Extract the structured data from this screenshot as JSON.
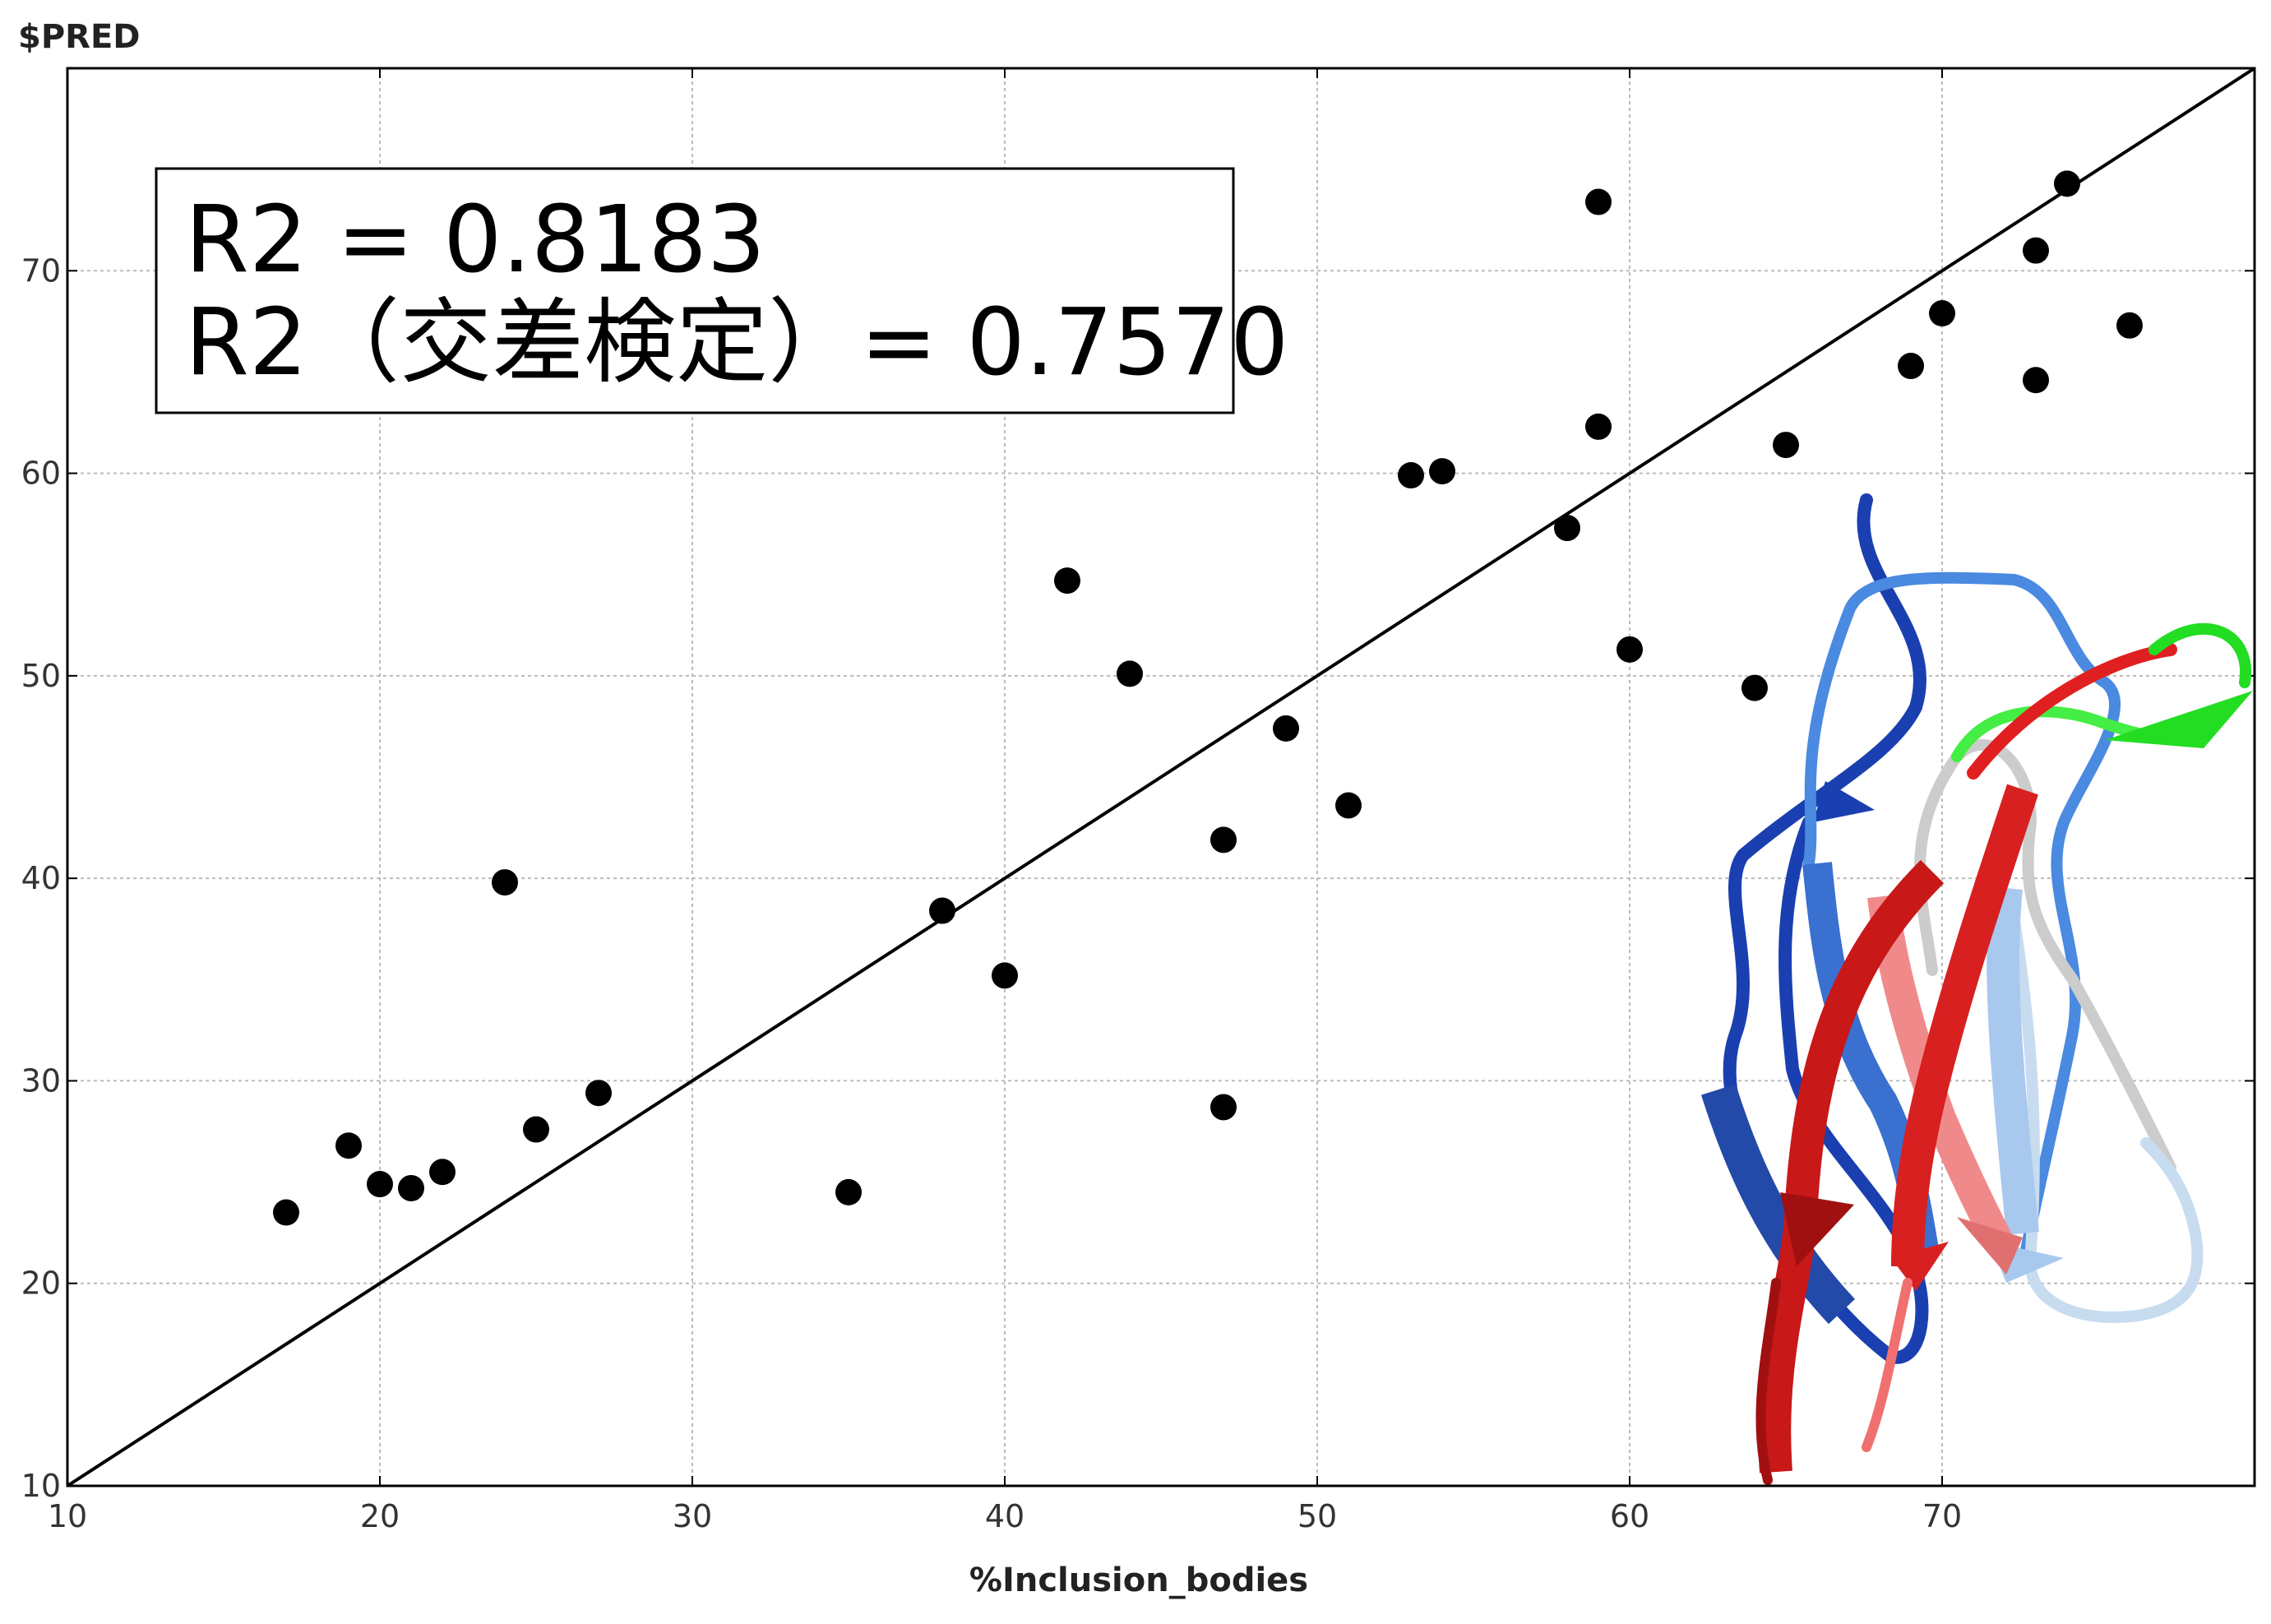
{
  "chart_data": {
    "type": "scatter",
    "ylabel": "$PRED",
    "xlabel": "%Inclusion_bodies",
    "xlim": [
      10,
      80
    ],
    "ylim": [
      10,
      80
    ],
    "x_ticks": [
      "10",
      "20",
      "30",
      "40",
      "50",
      "60",
      "70"
    ],
    "y_ticks": [
      "10",
      "20",
      "30",
      "40",
      "50",
      "60",
      "70"
    ],
    "grid": true,
    "reference_line": {
      "from": [
        10,
        10
      ],
      "to": [
        80,
        80
      ]
    },
    "annotation": [
      "R2 = 0.8183",
      "R2（交差検定）= 0.7570"
    ],
    "points": [
      {
        "x": 17,
        "y": 23.5
      },
      {
        "x": 19,
        "y": 26.8
      },
      {
        "x": 20,
        "y": 24.9
      },
      {
        "x": 21,
        "y": 24.7
      },
      {
        "x": 22,
        "y": 25.5
      },
      {
        "x": 24,
        "y": 39.8
      },
      {
        "x": 25,
        "y": 27.6
      },
      {
        "x": 27,
        "y": 29.4
      },
      {
        "x": 35,
        "y": 24.5
      },
      {
        "x": 38,
        "y": 38.4
      },
      {
        "x": 40,
        "y": 35.2
      },
      {
        "x": 42,
        "y": 54.7
      },
      {
        "x": 44,
        "y": 50.1
      },
      {
        "x": 47,
        "y": 41.9
      },
      {
        "x": 47,
        "y": 28.7
      },
      {
        "x": 49,
        "y": 47.4
      },
      {
        "x": 51,
        "y": 43.6
      },
      {
        "x": 53,
        "y": 59.9
      },
      {
        "x": 54,
        "y": 60.1
      },
      {
        "x": 58,
        "y": 57.3
      },
      {
        "x": 59,
        "y": 73.4
      },
      {
        "x": 59,
        "y": 62.3
      },
      {
        "x": 60,
        "y": 51.3
      },
      {
        "x": 64,
        "y": 49.4
      },
      {
        "x": 65,
        "y": 61.4
      },
      {
        "x": 69,
        "y": 65.3
      },
      {
        "x": 70,
        "y": 67.9
      },
      {
        "x": 73,
        "y": 71.0
      },
      {
        "x": 73,
        "y": 64.6
      },
      {
        "x": 74,
        "y": 74.3
      },
      {
        "x": 76,
        "y": 67.3
      }
    ],
    "marker_color": "#000000",
    "line_color": "#000000",
    "grid_color": "#bbbbbb"
  },
  "overlay": {
    "image": "protein-ribbon-structure",
    "colors": [
      "#1a3fb0",
      "#4a8ae0",
      "#d01818",
      "#f08a8a",
      "#22dd22",
      "#c8dcf0"
    ]
  }
}
